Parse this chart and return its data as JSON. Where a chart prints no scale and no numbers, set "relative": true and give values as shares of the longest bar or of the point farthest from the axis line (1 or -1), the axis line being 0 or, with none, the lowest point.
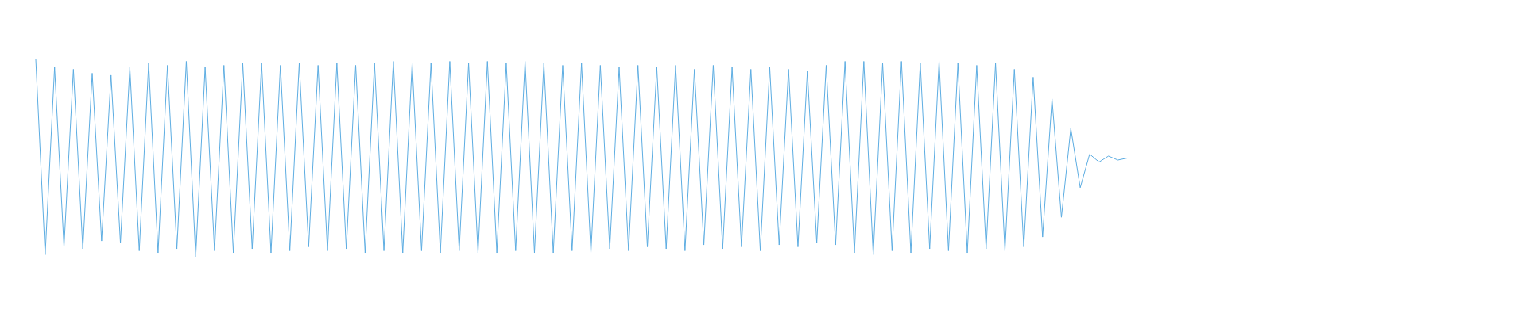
{
  "chart_data": {
    "type": "line",
    "relative": true,
    "categories": [
      null,
      null,
      null,
      null,
      null,
      null,
      null,
      null,
      null,
      null,
      null,
      null,
      null,
      null,
      null,
      null,
      null,
      null,
      null,
      null,
      null,
      null,
      null,
      null,
      null,
      null,
      null,
      null,
      null,
      null,
      null,
      null,
      null,
      null,
      null,
      null,
      null,
      null,
      null,
      null,
      null,
      null,
      null,
      null,
      null,
      null,
      null,
      null,
      null,
      null,
      null,
      null,
      null,
      null,
      null,
      null,
      null,
      null,
      null,
      null,
      null,
      null,
      null,
      null,
      null,
      null,
      null,
      null,
      null,
      null,
      null,
      null,
      null,
      null,
      null,
      null,
      null,
      null,
      null,
      null,
      null,
      null,
      null,
      null,
      null,
      null,
      null,
      null,
      null,
      null,
      null,
      null,
      null,
      null,
      null,
      null,
      null,
      null,
      null,
      null,
      null,
      null,
      null,
      null,
      null,
      null,
      null,
      null,
      null,
      null,
      null,
      null,
      null,
      null,
      null,
      null,
      null,
      null,
      null
    ],
    "series": [
      {
        "color": "#5dade2",
        "values": [
          1,
          0.01,
          0.96,
          0.05,
          0.95,
          0.04,
          0.93,
          0.08,
          0.92,
          0.07,
          0.96,
          0.03,
          0.98,
          0.02,
          0.97,
          0.04,
          0.99,
          0.0,
          0.96,
          0.03,
          0.97,
          0.02,
          0.98,
          0.04,
          0.98,
          0.02,
          0.97,
          0.03,
          0.98,
          0.05,
          0.97,
          0.03,
          0.98,
          0.04,
          0.97,
          0.02,
          0.98,
          0.03,
          0.99,
          0.02,
          0.98,
          0.03,
          0.98,
          0.02,
          0.99,
          0.03,
          0.98,
          0.02,
          0.99,
          0.02,
          0.98,
          0.03,
          0.99,
          0.02,
          0.98,
          0.02,
          0.97,
          0.03,
          0.98,
          0.02,
          0.97,
          0.04,
          0.96,
          0.03,
          0.97,
          0.05,
          0.96,
          0.04,
          0.97,
          0.03,
          0.95,
          0.06,
          0.97,
          0.04,
          0.96,
          0.05,
          0.95,
          0.03,
          0.96,
          0.06,
          0.95,
          0.05,
          0.94,
          0.07,
          0.97,
          0.06,
          0.99,
          0.02,
          0.99,
          0.01,
          0.98,
          0.03,
          0.99,
          0.02,
          0.98,
          0.04,
          0.99,
          0.03,
          0.98,
          0.02,
          0.97,
          0.04,
          0.98,
          0.03,
          0.95,
          0.05,
          0.91,
          0.1,
          0.8,
          0.2,
          0.65,
          0.35,
          0.52,
          0.48,
          0.51,
          0.49,
          0.5,
          0.5,
          0.5
        ]
      }
    ]
  }
}
